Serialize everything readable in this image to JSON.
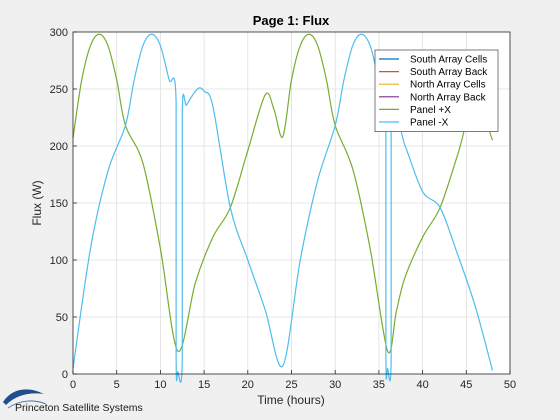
{
  "chart_data": {
    "type": "line",
    "title": "Page 1: Flux",
    "xlabel": "Time (hours)",
    "ylabel": "Flux (W)",
    "xlim": [
      0,
      50
    ],
    "ylim": [
      0,
      300
    ],
    "xticks": [
      0,
      5,
      10,
      15,
      20,
      25,
      30,
      35,
      40,
      45,
      50
    ],
    "yticks": [
      0,
      50,
      100,
      150,
      200,
      250,
      300
    ],
    "grid": true,
    "legend_position": "top-right",
    "series": [
      {
        "name": "South Array Cells",
        "color": "#0072bd",
        "x": [],
        "y": []
      },
      {
        "name": "South Array Back",
        "color": "#d95319",
        "x": [],
        "y": []
      },
      {
        "name": "North Array Cells",
        "color": "#edb120",
        "x": [],
        "y": []
      },
      {
        "name": "North Array Back",
        "color": "#7e2f8e",
        "x": [],
        "y": []
      },
      {
        "name": "Panel +X",
        "color": "#77ac30",
        "x": [
          0,
          1,
          2,
          3,
          4,
          5,
          6,
          8,
          10,
          12,
          14,
          16,
          18,
          20,
          22,
          23,
          24,
          25,
          26,
          27,
          28,
          29,
          30,
          32,
          34,
          36,
          37,
          38,
          40,
          42,
          44,
          46,
          48
        ],
        "y": [
          207,
          258,
          288,
          298,
          288,
          258,
          218,
          185,
          110,
          20,
          80,
          120,
          146,
          196,
          245,
          232,
          208,
          258,
          288,
          298,
          288,
          258,
          218,
          180,
          110,
          20,
          55,
          85,
          120,
          146,
          192,
          240,
          205
        ]
      },
      {
        "name": "Panel -X",
        "color": "#4dbeee",
        "x": [
          0,
          2,
          4,
          6,
          7,
          8,
          9,
          10,
          11,
          11.8,
          11.8,
          12.0,
          12.5,
          12.5,
          13,
          14,
          14.5,
          15,
          16,
          18,
          20,
          22,
          24,
          26,
          28,
          30,
          31,
          32,
          33,
          34,
          35,
          35.8,
          35.8,
          36.0,
          36.4,
          36.4,
          38,
          40,
          42,
          44,
          46,
          48
        ],
        "y": [
          5,
          110,
          178,
          218,
          258,
          288,
          298,
          288,
          258,
          238,
          15,
          2,
          12,
          228,
          236,
          248,
          251,
          248,
          235,
          146,
          100,
          56,
          7,
          100,
          170,
          218,
          258,
          288,
          298,
          288,
          258,
          238,
          15,
          5,
          12,
          228,
          200,
          160,
          146,
          105,
          60,
          3
        ]
      }
    ]
  },
  "logo": {
    "text": "Princeton Satellite Systems"
  }
}
